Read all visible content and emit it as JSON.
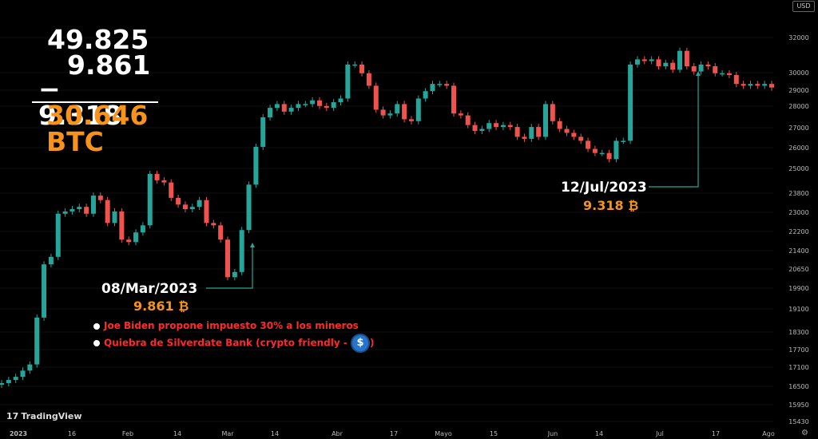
{
  "calculation": {
    "line1": "49.825",
    "line2": "9.861",
    "line3": "− 9.318",
    "total": "30.646 BTC"
  },
  "annotations": [
    {
      "date": "08/Mar/2023",
      "value": "9.861",
      "symbol": "₿"
    },
    {
      "date": "12/Jul/2023",
      "value": "9.318",
      "symbol": "₿"
    }
  ],
  "notes": [
    "Joe Biden propone impuesto 30% a los mineros",
    "Quiebra de Silverdate Bank (crypto friendly - ",
    ")"
  ],
  "usdc_icon_text": "$",
  "currency_label": "USD",
  "watermark": "TradingView",
  "colors": {
    "up": "#26a69a",
    "down": "#ef5350",
    "annotation_line": "#26a69a",
    "accent": "#f7931a",
    "note": "#ff2a2a",
    "background": "#000000"
  },
  "chart_data": {
    "type": "candlestick",
    "y_axis_ticks": [
      32000,
      30000,
      29000,
      28000,
      27000,
      26000,
      25000,
      23800,
      23000,
      22200,
      21400,
      20650,
      19900,
      19100,
      18300,
      17700,
      17100,
      16500,
      15950,
      15430
    ],
    "y_scale": "log",
    "x_axis_ticks": [
      "2023",
      "16",
      "Feb",
      "14",
      "Mar",
      "14",
      "Abr",
      "17",
      "Mayo",
      "15",
      "Jun",
      "14",
      "Jul",
      "17",
      "Ago"
    ],
    "close_series": [
      16600,
      16700,
      16800,
      17000,
      17200,
      18800,
      20800,
      21100,
      22900,
      23000,
      23100,
      23200,
      22900,
      23700,
      23500,
      22500,
      23000,
      21800,
      21700,
      22100,
      22400,
      24700,
      24400,
      24300,
      23600,
      23300,
      23100,
      23200,
      23500,
      22500,
      22400,
      21800,
      20300,
      20500,
      22200,
      24200,
      26000,
      27500,
      28000,
      28200,
      27800,
      28000,
      28200,
      28200,
      28400,
      28100,
      28000,
      28300,
      28500,
      30400,
      30400,
      29900,
      29200,
      27900,
      27600,
      27700,
      28200,
      27400,
      27300,
      28500,
      28900,
      29300,
      29300,
      29200,
      27700,
      27600,
      27100,
      26800,
      26900,
      27200,
      27000,
      27100,
      27000,
      26500,
      26400,
      27000,
      26500,
      28200,
      27300,
      26900,
      26700,
      26500,
      26300,
      25900,
      25700,
      25700,
      25400,
      26300,
      26300,
      30400,
      30700,
      30600,
      30700,
      30300,
      30500,
      30100,
      31200,
      30300,
      30000,
      30400,
      30300,
      29900,
      29900,
      29800,
      29300,
      29200,
      29300,
      29200,
      29300,
      29100
    ]
  }
}
